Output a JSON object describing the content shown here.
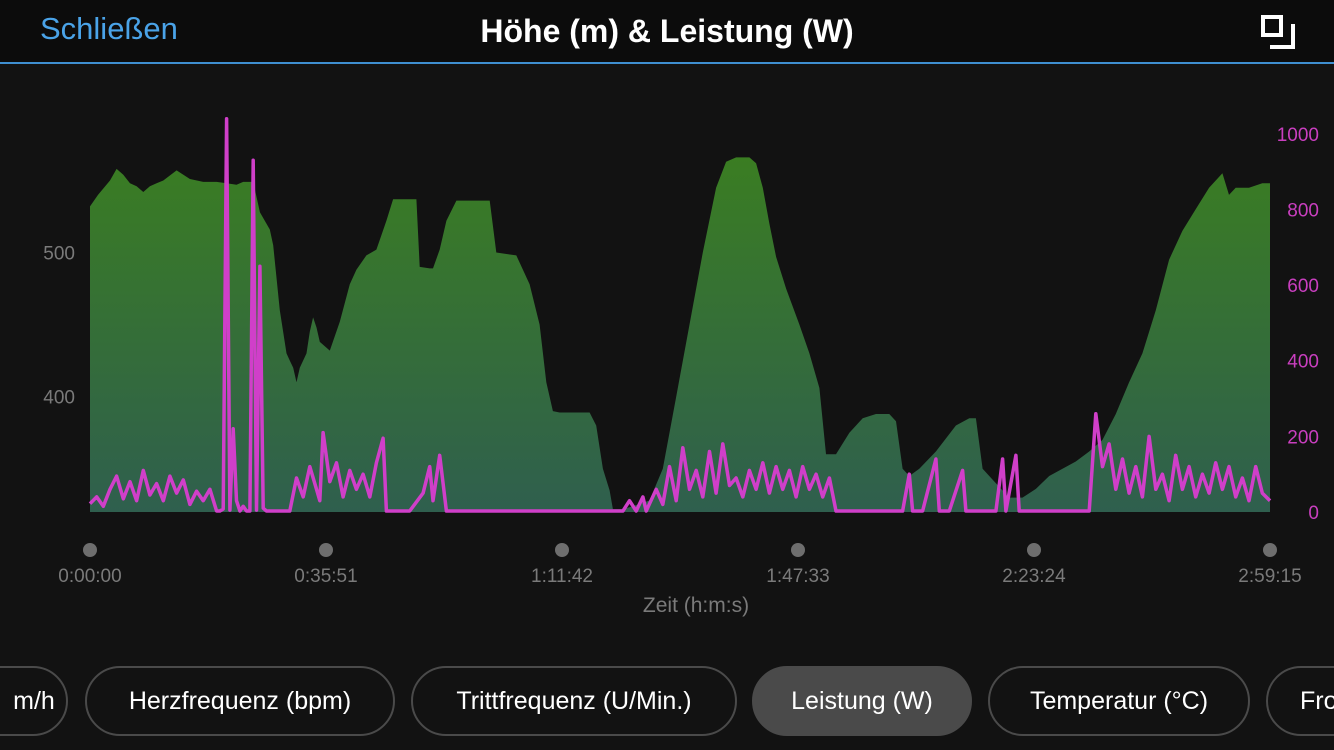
{
  "header": {
    "close_label": "Schließen",
    "title": "Höhe (m) & Leistung (W)",
    "expand_icon": "expand-icon"
  },
  "colors": {
    "accent": "#4aa3e8",
    "elevation_fill_top": "#3a7d22",
    "elevation_fill_bottom": "#2f5f4e",
    "power_line": "#d03fc9",
    "axis_text": "#7a7a7a",
    "right_axis_text": "#c93fbf"
  },
  "chart_data": {
    "type": "area",
    "xlabel": "Zeit (h:m:s)",
    "x_ticks": [
      "0:00:00",
      "0:35:51",
      "1:11:42",
      "1:47:33",
      "2:23:24",
      "2:59:15"
    ],
    "x_range_seconds": [
      0,
      10755
    ],
    "left_axis": {
      "ticks": [
        400,
        500
      ],
      "range": [
        320,
        585
      ]
    },
    "right_axis": {
      "ticks": [
        0,
        200,
        400,
        600,
        800,
        1000
      ],
      "range": [
        0,
        1010
      ]
    },
    "series": [
      {
        "axis": "left",
        "kind": "area",
        "points": [
          [
            0,
            532
          ],
          [
            120,
            540
          ],
          [
            300,
            550
          ],
          [
            400,
            558
          ],
          [
            500,
            554
          ],
          [
            600,
            548
          ],
          [
            700,
            546
          ],
          [
            800,
            542
          ],
          [
            900,
            546
          ],
          [
            1000,
            548
          ],
          [
            1100,
            550
          ],
          [
            1300,
            557
          ],
          [
            1500,
            551
          ],
          [
            1700,
            549
          ],
          [
            1900,
            549
          ],
          [
            2050,
            548
          ],
          [
            2200,
            547
          ],
          [
            2300,
            549
          ],
          [
            2450,
            549
          ],
          [
            2550,
            528
          ],
          [
            2700,
            516
          ],
          [
            2750,
            505
          ],
          [
            2850,
            460
          ],
          [
            2950,
            430
          ],
          [
            3000,
            425
          ],
          [
            3050,
            420
          ],
          [
            3100,
            410
          ],
          [
            3150,
            420
          ],
          [
            3250,
            430
          ],
          [
            3300,
            445
          ],
          [
            3350,
            455
          ],
          [
            3400,
            448
          ],
          [
            3450,
            438
          ],
          [
            3600,
            432
          ],
          [
            3750,
            452
          ],
          [
            3900,
            478
          ],
          [
            4000,
            488
          ],
          [
            4150,
            498
          ],
          [
            4300,
            502
          ],
          [
            4450,
            522
          ],
          [
            4550,
            537
          ],
          [
            4800,
            537
          ],
          [
            4900,
            537
          ],
          [
            4950,
            490
          ],
          [
            5100,
            489
          ],
          [
            5150,
            489
          ],
          [
            5250,
            502
          ],
          [
            5350,
            522
          ],
          [
            5500,
            536
          ],
          [
            5800,
            536
          ],
          [
            6000,
            536
          ],
          [
            6100,
            500
          ],
          [
            6400,
            498
          ],
          [
            6600,
            478
          ],
          [
            6750,
            450
          ],
          [
            6850,
            410
          ],
          [
            6950,
            390
          ],
          [
            7050,
            389
          ],
          [
            7500,
            389
          ],
          [
            7600,
            380
          ],
          [
            7700,
            350
          ],
          [
            7800,
            335
          ],
          [
            7850,
            322
          ],
          [
            8000,
            322
          ],
          [
            8150,
            324
          ],
          [
            8400,
            328
          ],
          [
            8600,
            350
          ],
          [
            8800,
            400
          ],
          [
            9000,
            450
          ],
          [
            9200,
            500
          ],
          [
            9400,
            545
          ],
          [
            9550,
            563
          ],
          [
            9700,
            566
          ],
          [
            9900,
            566
          ],
          [
            10000,
            562
          ],
          [
            10100,
            545
          ],
          [
            10200,
            520
          ],
          [
            10300,
            497
          ],
          [
            10450,
            475
          ],
          [
            10650,
            450
          ],
          [
            10800,
            430
          ],
          [
            10950,
            406
          ],
          [
            11050,
            360
          ],
          [
            11200,
            360
          ],
          [
            11400,
            375
          ],
          [
            11600,
            385
          ],
          [
            11800,
            388
          ],
          [
            12000,
            388
          ],
          [
            12100,
            383
          ],
          [
            12200,
            350
          ],
          [
            12300,
            345
          ],
          [
            12450,
            350
          ],
          [
            12700,
            362
          ],
          [
            13000,
            380
          ],
          [
            13200,
            385
          ],
          [
            13300,
            385
          ],
          [
            13400,
            350
          ],
          [
            13600,
            340
          ],
          [
            13800,
            330
          ],
          [
            14000,
            330
          ],
          [
            14200,
            336
          ],
          [
            14400,
            345
          ],
          [
            14600,
            350
          ],
          [
            14800,
            355
          ],
          [
            15000,
            362
          ],
          [
            15200,
            370
          ],
          [
            15400,
            388
          ],
          [
            15600,
            410
          ],
          [
            15800,
            430
          ],
          [
            16000,
            460
          ],
          [
            16200,
            495
          ],
          [
            16400,
            515
          ],
          [
            16600,
            530
          ],
          [
            16800,
            545
          ],
          [
            17000,
            555
          ],
          [
            17100,
            540
          ],
          [
            17200,
            545
          ],
          [
            17400,
            545
          ],
          [
            17600,
            548
          ],
          [
            17715,
            548
          ]
        ]
      },
      {
        "axis": "right",
        "kind": "line",
        "points": [
          [
            0,
            22
          ],
          [
            100,
            40
          ],
          [
            200,
            15
          ],
          [
            300,
            60
          ],
          [
            400,
            95
          ],
          [
            500,
            35
          ],
          [
            600,
            80
          ],
          [
            700,
            30
          ],
          [
            800,
            110
          ],
          [
            900,
            45
          ],
          [
            1000,
            75
          ],
          [
            1100,
            30
          ],
          [
            1200,
            95
          ],
          [
            1300,
            50
          ],
          [
            1400,
            85
          ],
          [
            1500,
            20
          ],
          [
            1600,
            55
          ],
          [
            1700,
            30
          ],
          [
            1800,
            60
          ],
          [
            1900,
            0
          ],
          [
            1950,
            0
          ],
          [
            2000,
            8
          ],
          [
            2050,
            1040
          ],
          [
            2100,
            5
          ],
          [
            2150,
            220
          ],
          [
            2200,
            30
          ],
          [
            2250,
            0
          ],
          [
            2300,
            15
          ],
          [
            2350,
            0
          ],
          [
            2400,
            0
          ],
          [
            2450,
            930
          ],
          [
            2500,
            5
          ],
          [
            2550,
            650
          ],
          [
            2600,
            10
          ],
          [
            2650,
            0
          ],
          [
            2700,
            0
          ],
          [
            2800,
            0
          ],
          [
            2900,
            0
          ],
          [
            3000,
            0
          ],
          [
            3100,
            90
          ],
          [
            3200,
            40
          ],
          [
            3300,
            120
          ],
          [
            3400,
            60
          ],
          [
            3450,
            30
          ],
          [
            3500,
            210
          ],
          [
            3600,
            80
          ],
          [
            3700,
            130
          ],
          [
            3800,
            40
          ],
          [
            3900,
            110
          ],
          [
            4000,
            60
          ],
          [
            4100,
            100
          ],
          [
            4200,
            40
          ],
          [
            4300,
            130
          ],
          [
            4400,
            195
          ],
          [
            4450,
            0
          ],
          [
            4600,
            0
          ],
          [
            4800,
            0
          ],
          [
            5000,
            50
          ],
          [
            5100,
            120
          ],
          [
            5150,
            30
          ],
          [
            5250,
            150
          ],
          [
            5350,
            0
          ],
          [
            5500,
            0
          ],
          [
            6000,
            0
          ],
          [
            6500,
            0
          ],
          [
            7000,
            0
          ],
          [
            7100,
            0
          ],
          [
            7500,
            0
          ],
          [
            8000,
            0
          ],
          [
            8100,
            30
          ],
          [
            8200,
            0
          ],
          [
            8300,
            40
          ],
          [
            8350,
            0
          ],
          [
            8500,
            60
          ],
          [
            8600,
            20
          ],
          [
            8700,
            120
          ],
          [
            8800,
            30
          ],
          [
            8900,
            170
          ],
          [
            9000,
            60
          ],
          [
            9100,
            110
          ],
          [
            9200,
            40
          ],
          [
            9300,
            160
          ],
          [
            9400,
            50
          ],
          [
            9500,
            180
          ],
          [
            9600,
            70
          ],
          [
            9700,
            90
          ],
          [
            9800,
            40
          ],
          [
            9900,
            110
          ],
          [
            10000,
            60
          ],
          [
            10100,
            130
          ],
          [
            10200,
            50
          ],
          [
            10300,
            120
          ],
          [
            10400,
            60
          ],
          [
            10500,
            110
          ],
          [
            10600,
            40
          ],
          [
            10700,
            120
          ],
          [
            10800,
            60
          ],
          [
            10900,
            100
          ],
          [
            11000,
            40
          ],
          [
            11100,
            90
          ],
          [
            11200,
            0
          ],
          [
            11300,
            0
          ],
          [
            11400,
            0
          ],
          [
            11600,
            0
          ],
          [
            11800,
            0
          ],
          [
            12000,
            0
          ],
          [
            12200,
            0
          ],
          [
            12300,
            100
          ],
          [
            12350,
            0
          ],
          [
            12500,
            0
          ],
          [
            12700,
            140
          ],
          [
            12750,
            0
          ],
          [
            12900,
            0
          ],
          [
            13100,
            110
          ],
          [
            13150,
            0
          ],
          [
            13300,
            0
          ],
          [
            13600,
            0
          ],
          [
            13700,
            140
          ],
          [
            13750,
            0
          ],
          [
            13900,
            150
          ],
          [
            13950,
            0
          ],
          [
            14100,
            0
          ],
          [
            14400,
            0
          ],
          [
            14600,
            0
          ],
          [
            14800,
            0
          ],
          [
            15000,
            0
          ],
          [
            15100,
            260
          ],
          [
            15200,
            120
          ],
          [
            15300,
            180
          ],
          [
            15400,
            60
          ],
          [
            15500,
            140
          ],
          [
            15600,
            50
          ],
          [
            15700,
            120
          ],
          [
            15800,
            40
          ],
          [
            15900,
            200
          ],
          [
            16000,
            60
          ],
          [
            16100,
            100
          ],
          [
            16200,
            30
          ],
          [
            16300,
            150
          ],
          [
            16400,
            60
          ],
          [
            16500,
            120
          ],
          [
            16600,
            40
          ],
          [
            16700,
            100
          ],
          [
            16800,
            50
          ],
          [
            16900,
            130
          ],
          [
            17000,
            60
          ],
          [
            17100,
            120
          ],
          [
            17200,
            40
          ],
          [
            17300,
            90
          ],
          [
            17400,
            30
          ],
          [
            17500,
            120
          ],
          [
            17600,
            50
          ],
          [
            17715,
            30
          ]
        ]
      }
    ]
  },
  "tabs": [
    {
      "label": "m/h",
      "active": false
    },
    {
      "label": "Herzfrequenz (bpm)",
      "active": false
    },
    {
      "label": "Trittfrequenz (U/Min.)",
      "active": false
    },
    {
      "label": "Leistung (W)",
      "active": true
    },
    {
      "label": "Temperatur (°C)",
      "active": false
    },
    {
      "label": "Fro",
      "active": false
    }
  ]
}
